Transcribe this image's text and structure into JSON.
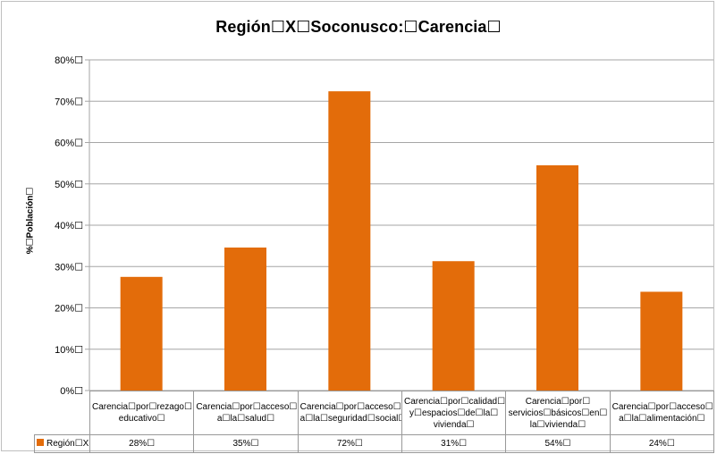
{
  "chart_data": {
    "type": "bar",
    "title": "Región☐X☐Soconusco:☐Carencia☐",
    "ylabel": "%☐Población☐",
    "xlabel": "",
    "ylim": [
      0,
      80
    ],
    "yticks": [
      "0%☐",
      "10%☐",
      "20%☐",
      "30%☐",
      "40%☐",
      "50%☐",
      "60%☐",
      "70%☐",
      "80%☐"
    ],
    "categories": [
      "Carencia☐por☐rezago☐ educativo☐",
      "Carencia☐por☐acceso☐ a☐la☐salud☐",
      "Carencia☐por☐acceso☐ a☐la☐seguridad☐social☐",
      "Carencia☐por☐calidad☐ y☐espacios☐de☐la☐ vivienda☐",
      "Carencia☐por☐ servicios☐básicos☐en☐ la☐vivienda☐",
      "Carencia☐por☐acceso☐ a☐la☐alimentación☐"
    ],
    "series": [
      {
        "name": "Región☐X☐",
        "values": [
          27.5,
          34.6,
          72.4,
          31.3,
          54.5,
          23.9
        ],
        "labels": [
          "28%☐",
          "35%☐",
          "72%☐",
          "31%☐",
          "54%☐",
          "24%☐"
        ],
        "color": "#e36c0a"
      }
    ],
    "grid": true,
    "legend": "bottom-left"
  }
}
